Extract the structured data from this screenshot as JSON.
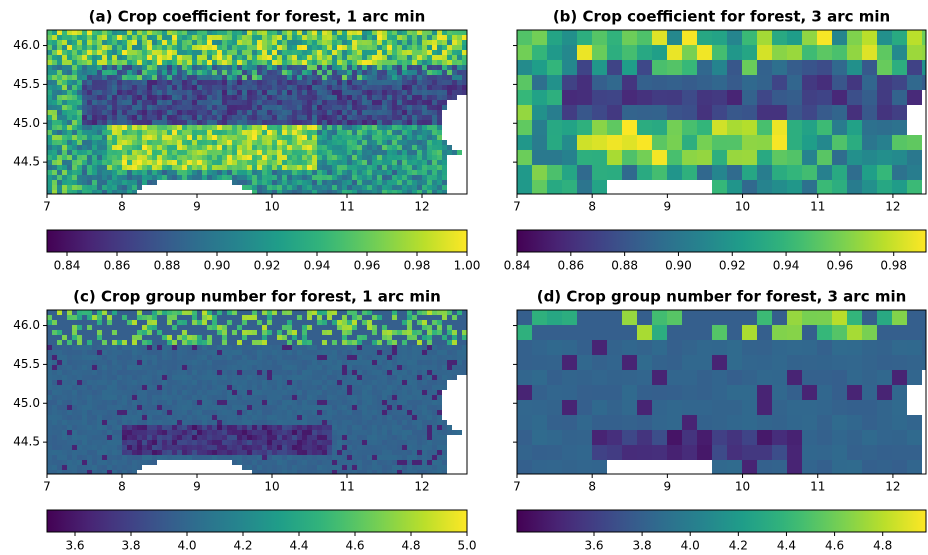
{
  "chart_data": [
    {
      "type": "heatmap",
      "title": "(a) Crop coefficient for forest, 1 arc min",
      "field": "coefficient",
      "resolution": 1,
      "xlim": [
        7,
        12.6
      ],
      "xticks": [
        7,
        8,
        9,
        10,
        11,
        12
      ],
      "ylim": [
        44.09,
        46.2
      ],
      "yticks": [
        {
          "value": 44.5,
          "label": "44.5"
        },
        {
          "value": 45,
          "label": "45.0"
        },
        {
          "value": 45.5,
          "label": "45.5"
        },
        {
          "value": 46,
          "label": "46.0"
        }
      ],
      "colormap": "viridis",
      "colorbar": {
        "lim": [
          0.832,
          1.0
        ],
        "ticks": [
          0.84,
          0.86,
          0.88,
          {
            "value": 0.9,
            "label": "0.90"
          },
          0.92,
          0.94,
          0.96,
          0.98,
          {
            "value": 1.0,
            "label": "1.00"
          }
        ]
      }
    },
    {
      "type": "heatmap",
      "title": "(b) Crop coefficient for forest, 3 arc min",
      "field": "coefficient",
      "resolution": 3,
      "xlim": [
        7,
        12.44
      ],
      "xticks": [
        7,
        8,
        9,
        10,
        11,
        12
      ],
      "ylim": [
        44.09,
        46.2
      ],
      "yticks": [
        44.5,
        45,
        45.5,
        46
      ],
      "colormap": "viridis",
      "colorbar": {
        "lim": [
          0.84,
          0.992
        ],
        "ticks": [
          0.84,
          0.86,
          0.88,
          {
            "value": 0.9,
            "label": "0.90"
          },
          0.92,
          0.94,
          0.96,
          0.98
        ]
      }
    },
    {
      "type": "heatmap",
      "title": "(c) Crop group number for forest, 1 arc min",
      "field": "group",
      "resolution": 1,
      "xlim": [
        7,
        12.6
      ],
      "xticks": [
        7,
        8,
        9,
        10,
        11,
        12
      ],
      "ylim": [
        44.09,
        46.2
      ],
      "yticks": [
        {
          "value": 44.5,
          "label": "44.5"
        },
        {
          "value": 45,
          "label": "45.0"
        },
        {
          "value": 45.5,
          "label": "45.5"
        },
        {
          "value": 46,
          "label": "46.0"
        }
      ],
      "colormap": "viridis",
      "colorbar": {
        "lim": [
          3.5,
          5.0
        ],
        "ticks": [
          3.6,
          3.8,
          {
            "value": 4,
            "label": "4.0"
          },
          4.2,
          4.4,
          4.6,
          4.8,
          {
            "value": 5,
            "label": "5.0"
          }
        ]
      }
    },
    {
      "type": "heatmap",
      "title": "(d) Crop group number for forest, 3 arc min",
      "field": "group",
      "resolution": 3,
      "xlim": [
        7,
        12.44
      ],
      "xticks": [
        7,
        8,
        9,
        10,
        11,
        12
      ],
      "ylim": [
        44.09,
        46.2
      ],
      "yticks": [
        44.5,
        45,
        45.5,
        46
      ],
      "colormap": "viridis",
      "colorbar": {
        "lim": [
          3.28,
          4.98
        ],
        "ticks": [
          3.6,
          3.8,
          {
            "value": 4,
            "label": "4.0"
          },
          4.2,
          4.4,
          4.6,
          4.8
        ]
      }
    }
  ]
}
